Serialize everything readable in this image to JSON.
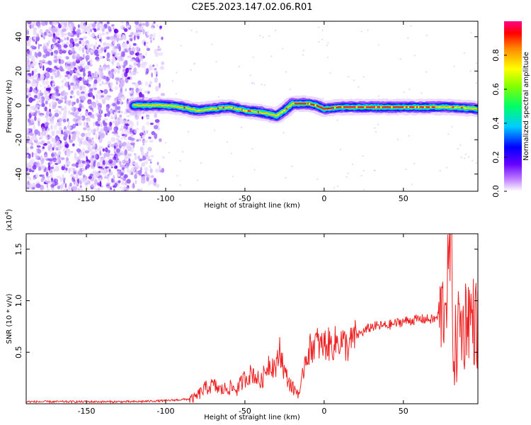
{
  "title": "C2E5.2023.147.02.06.R01",
  "chart_data": [
    {
      "type": "heatmap",
      "xlabel": "Height of straight line (km)",
      "ylabel": "Frequency (Hz)",
      "xlim": [
        -188,
        97
      ],
      "ylim": [
        -50,
        49
      ],
      "x_ticks": [
        -150,
        -100,
        -50,
        0,
        50
      ],
      "y_ticks": [
        -40,
        -20,
        0,
        20,
        40
      ],
      "colorbar": {
        "label": "Normalized spectral amplitude",
        "range": [
          0,
          1
        ],
        "ticks": [
          "0.0",
          "0.2",
          "0.4",
          "0.6",
          "0.8"
        ],
        "colors": [
          "#ffffff",
          "#9900ff",
          "#0000ff",
          "#00ccff",
          "#00ff66",
          "#88ff00",
          "#ffff00",
          "#ff8800",
          "#ff0000",
          "#ff0088"
        ]
      },
      "noise_region_x": [
        -188,
        -100
      ],
      "signal_track": {
        "x": [
          -120,
          -100,
          -90,
          -80,
          -70,
          -60,
          -50,
          -40,
          -35,
          -30,
          -25,
          -20,
          -15,
          -10,
          -5,
          0,
          10,
          20,
          50,
          70,
          80,
          97
        ],
        "y": [
          0,
          0,
          -1,
          -3,
          -2,
          -1,
          -3,
          -4,
          -5,
          -6,
          -3,
          1,
          1,
          1,
          0,
          -2,
          -1,
          -1,
          -1,
          -1,
          -1,
          -2
        ]
      }
    },
    {
      "type": "line",
      "xlabel": "Height of straight line (km)",
      "ylabel": "SNR (10 * v/v)",
      "y_multiplier": "(x10",
      "y_multiplier_exp": "4",
      "y_multiplier_close": ")",
      "xlim": [
        -188,
        97
      ],
      "ylim": [
        0,
        1.65
      ],
      "x_ticks": [
        -150,
        -100,
        -50,
        0,
        50
      ],
      "y_ticks": [
        "0.5",
        "1.0",
        "1.5"
      ],
      "series": [
        {
          "color": "#ee2222",
          "x": [
            -188,
            -150,
            -120,
            -100,
            -90,
            -82,
            -75,
            -70,
            -65,
            -60,
            -55,
            -50,
            -45,
            -40,
            -35,
            -30,
            -28,
            -25,
            -20,
            -15,
            -12,
            -10,
            -8,
            -5,
            -2,
            0,
            5,
            10,
            15,
            20,
            25,
            30,
            40,
            50,
            60,
            70,
            75,
            78,
            80,
            82,
            85,
            88,
            90,
            95,
            97
          ],
          "y": [
            0.02,
            0.02,
            0.02,
            0.03,
            0.04,
            0.05,
            0.15,
            0.18,
            0.13,
            0.16,
            0.14,
            0.25,
            0.3,
            0.2,
            0.4,
            0.35,
            0.55,
            0.3,
            0.15,
            0.1,
            0.45,
            0.5,
            0.55,
            0.6,
            0.55,
            0.58,
            0.57,
            0.62,
            0.55,
            0.66,
            0.7,
            0.75,
            0.76,
            0.8,
            0.82,
            0.82,
            0.9,
            1.2,
            1.6,
            0.4,
            0.8,
            0.7,
            0.9,
            0.8,
            0.75
          ]
        }
      ]
    }
  ]
}
